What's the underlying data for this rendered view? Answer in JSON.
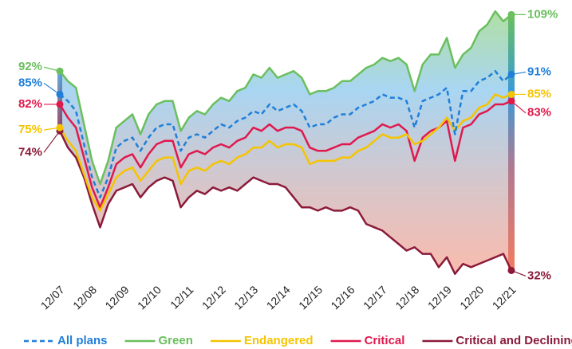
{
  "chart_data": {
    "type": "line",
    "categories": [
      "12/07",
      null,
      null,
      null,
      "12/08",
      null,
      null,
      null,
      "12/09",
      null,
      null,
      null,
      "12/10",
      null,
      null,
      null,
      "12/11",
      null,
      null,
      null,
      "12/12",
      null,
      null,
      null,
      "12/13",
      null,
      null,
      null,
      "12/14",
      null,
      null,
      null,
      "12/15",
      null,
      null,
      null,
      "12/16",
      null,
      null,
      null,
      "12/17",
      null,
      null,
      null,
      "12/18",
      null,
      null,
      null,
      "12/19",
      null,
      null,
      null,
      "12/20",
      null,
      null,
      null,
      "12/21"
    ],
    "ylim": [
      29,
      111
    ],
    "series": [
      {
        "name": "All plans",
        "color": "#1f7fd9",
        "dashed": true,
        "values": [
          85,
          83,
          80,
          70,
          60,
          54,
          60,
          69,
          71,
          72,
          68,
          72,
          75,
          76,
          76,
          68,
          72,
          73,
          72,
          74,
          76,
          75,
          77,
          78,
          80,
          79,
          82,
          80,
          81,
          82,
          80,
          75,
          76,
          76,
          78,
          79,
          79,
          81,
          82,
          83,
          85,
          84,
          84,
          83,
          75,
          83,
          84,
          85,
          87,
          73,
          86,
          86,
          89,
          90,
          92,
          89,
          91
        ],
        "value_labels": [
          "85%",
          null,
          null,
          null,
          null,
          null,
          null,
          null,
          null,
          null,
          null,
          null,
          null,
          null,
          null,
          null,
          null,
          null,
          null,
          null,
          null,
          null,
          null,
          null,
          null,
          null,
          null,
          null,
          null,
          null,
          null,
          null,
          null,
          null,
          null,
          null,
          null,
          null,
          null,
          null,
          null,
          null,
          null,
          null,
          null,
          null,
          null,
          null,
          null,
          null,
          null,
          null,
          null,
          null,
          null,
          null,
          "91%"
        ]
      },
      {
        "name": "Green",
        "color": "#6abf5e",
        "values": [
          92,
          89,
          87,
          76,
          65,
          58,
          65,
          75,
          77,
          79,
          73,
          79,
          82,
          83,
          83,
          74,
          78,
          80,
          79,
          82,
          84,
          83,
          86,
          87,
          91,
          90,
          93,
          90,
          91,
          92,
          90,
          85,
          86,
          86,
          87,
          89,
          89,
          91,
          93,
          94,
          96,
          95,
          96,
          94,
          86,
          94,
          97,
          97,
          102,
          93,
          97,
          99,
          104,
          106,
          110,
          107,
          109
        ],
        "value_labels": [
          "92%",
          null,
          null,
          null,
          null,
          null,
          null,
          null,
          null,
          null,
          null,
          null,
          null,
          null,
          null,
          null,
          null,
          null,
          null,
          null,
          null,
          null,
          null,
          null,
          null,
          null,
          null,
          null,
          null,
          null,
          null,
          null,
          null,
          null,
          null,
          null,
          null,
          null,
          null,
          null,
          null,
          null,
          null,
          null,
          null,
          null,
          null,
          null,
          null,
          null,
          null,
          null,
          null,
          null,
          null,
          null,
          "109%"
        ]
      },
      {
        "name": "Endangered",
        "color": "#f5c400",
        "values": [
          75,
          71,
          68,
          61,
          54,
          50,
          55,
          60,
          62,
          63,
          59,
          62,
          65,
          66,
          66,
          58,
          62,
          63,
          62,
          64,
          65,
          64,
          66,
          67,
          69,
          69,
          71,
          69,
          70,
          70,
          69,
          64,
          65,
          65,
          65,
          66,
          66,
          68,
          69,
          71,
          73,
          72,
          72,
          73,
          70,
          71,
          73,
          75,
          78,
          74,
          77,
          78,
          81,
          82,
          85,
          84,
          85
        ],
        "value_labels": [
          "75%",
          null,
          null,
          null,
          null,
          null,
          null,
          null,
          null,
          null,
          null,
          null,
          null,
          null,
          null,
          null,
          null,
          null,
          null,
          null,
          null,
          null,
          null,
          null,
          null,
          null,
          null,
          null,
          null,
          null,
          null,
          null,
          null,
          null,
          null,
          null,
          null,
          null,
          null,
          null,
          null,
          null,
          null,
          null,
          null,
          null,
          null,
          null,
          null,
          null,
          null,
          null,
          null,
          null,
          null,
          null,
          "85%"
        ]
      },
      {
        "name": "Critical",
        "color": "#e0194d",
        "values": [
          82,
          78,
          75,
          66,
          57,
          51,
          57,
          64,
          66,
          67,
          63,
          67,
          70,
          71,
          71,
          63,
          67,
          68,
          67,
          69,
          70,
          69,
          71,
          72,
          75,
          74,
          76,
          74,
          75,
          75,
          74,
          69,
          68,
          68,
          69,
          70,
          70,
          72,
          73,
          74,
          76,
          75,
          76,
          74,
          65,
          72,
          74,
          75,
          77,
          65,
          75,
          76,
          79,
          80,
          82,
          82,
          83
        ],
        "value_labels": [
          "82%",
          null,
          null,
          null,
          null,
          null,
          null,
          null,
          null,
          null,
          null,
          null,
          null,
          null,
          null,
          null,
          null,
          null,
          null,
          null,
          null,
          null,
          null,
          null,
          null,
          null,
          null,
          null,
          null,
          null,
          null,
          null,
          null,
          null,
          null,
          null,
          null,
          null,
          null,
          null,
          null,
          null,
          null,
          null,
          null,
          null,
          null,
          null,
          null,
          null,
          null,
          null,
          null,
          null,
          null,
          null,
          "83%"
        ]
      },
      {
        "name": "Critical and Declining",
        "color": "#8b1a3a",
        "values": [
          74,
          69,
          66,
          60,
          52,
          45,
          52,
          56,
          57,
          58,
          54,
          57,
          59,
          60,
          59,
          51,
          54,
          56,
          55,
          57,
          56,
          57,
          56,
          58,
          60,
          59,
          58,
          58,
          57,
          54,
          51,
          51,
          50,
          51,
          50,
          50,
          51,
          50,
          46,
          45,
          44,
          42,
          40,
          38,
          39,
          37,
          37,
          33,
          36,
          31,
          34,
          33,
          34,
          35,
          36,
          37,
          32
        ],
        "value_labels": [
          "74%",
          null,
          null,
          null,
          null,
          null,
          null,
          null,
          null,
          null,
          null,
          null,
          null,
          null,
          null,
          null,
          null,
          null,
          null,
          null,
          null,
          null,
          null,
          null,
          null,
          null,
          null,
          null,
          null,
          null,
          null,
          null,
          null,
          null,
          null,
          null,
          null,
          null,
          null,
          null,
          null,
          null,
          null,
          null,
          null,
          null,
          null,
          null,
          null,
          null,
          null,
          null,
          null,
          null,
          null,
          null,
          "32%"
        ]
      }
    ]
  }
}
